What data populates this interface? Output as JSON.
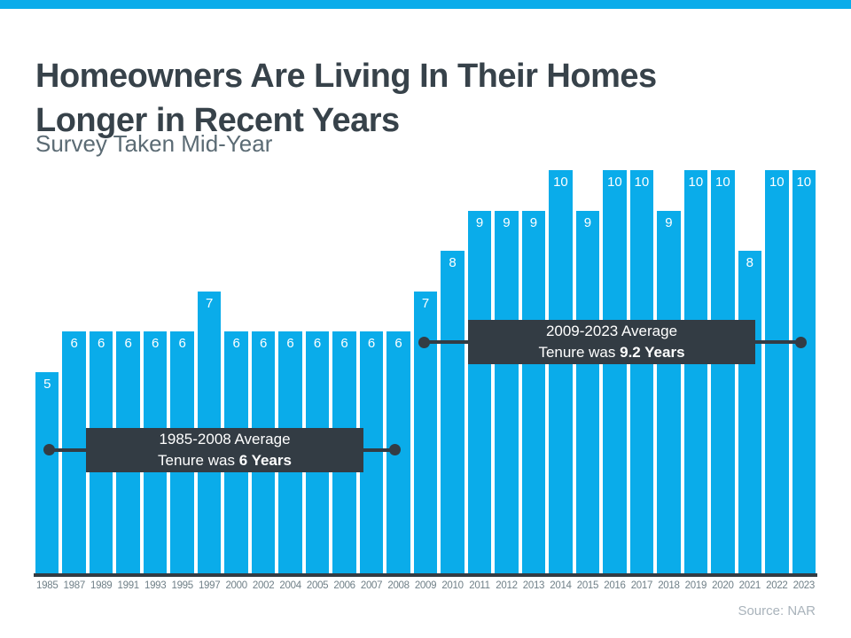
{
  "header": {
    "title_line1": "Homeowners Are Living In Their Homes",
    "title_line2": "Longer in Recent Years",
    "subtitle": "Survey Taken Mid-Year"
  },
  "chart_data": {
    "type": "bar",
    "title": "Homeowners Are Living In Their Homes Longer in Recent Years",
    "subtitle": "Survey Taken Mid-Year",
    "categories": [
      "1985",
      "1987",
      "1989",
      "1991",
      "1993",
      "1995",
      "1997",
      "2000",
      "2002",
      "2004",
      "2005",
      "2006",
      "2007",
      "2008",
      "2009",
      "2010",
      "2011",
      "2012",
      "2013",
      "2014",
      "2015",
      "2016",
      "2017",
      "2018",
      "2019",
      "2020",
      "2021",
      "2022",
      "2023"
    ],
    "values": [
      5,
      6,
      6,
      6,
      6,
      6,
      7,
      6,
      6,
      6,
      6,
      6,
      6,
      6,
      7,
      8,
      9,
      9,
      9,
      10,
      9,
      10,
      10,
      9,
      10,
      10,
      8,
      10,
      10
    ],
    "ylim": [
      0,
      10
    ],
    "xlabel": "",
    "ylabel": "",
    "grid": false,
    "legend": false,
    "bar_labels_shown": true,
    "colors": {
      "bar": "#0AACEA",
      "annotation_bg": "#333C44",
      "axis_line": "#333C44",
      "title_text": "#37424A",
      "tick_text": "#708088"
    },
    "annotations": [
      {
        "line1": "1985-2008 Average",
        "line2_prefix": "Tenure was ",
        "line2_bold": "6 Years",
        "span_years": "1985-2008"
      },
      {
        "line1": "2009-2023 Average",
        "line2_prefix": "Tenure was ",
        "line2_bold": "9.2 Years",
        "span_years": "2009-2023"
      }
    ]
  },
  "footer": {
    "source": "Source: NAR"
  }
}
